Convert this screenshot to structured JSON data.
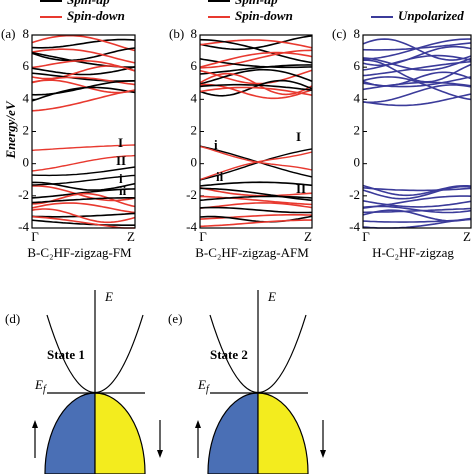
{
  "panels": [
    {
      "label": "(a)",
      "legend": [
        {
          "name": "Spin-up",
          "color": "#000000"
        },
        {
          "name": "Spin-down",
          "color": "#e8392f"
        }
      ],
      "ylabel": "Energy/eV",
      "ylim": [
        -4,
        8
      ],
      "yticks": [
        -4,
        -2,
        0,
        2,
        4,
        6,
        8
      ],
      "xticks": [
        "Γ",
        "Z"
      ],
      "caption": "B-C₂HF-zigzag-FM",
      "annotations": [
        {
          "text": "I",
          "color": "#e8392f"
        },
        {
          "text": "II",
          "color": "#e8392f"
        },
        {
          "text": "i",
          "color": "#000000"
        },
        {
          "text": "ii",
          "color": "#000000"
        }
      ]
    },
    {
      "label": "(b)",
      "legend": [
        {
          "name": "Spin-up",
          "color": "#000000"
        },
        {
          "name": "Spin-down",
          "color": "#e8392f"
        }
      ],
      "ylim": [
        -4,
        8
      ],
      "yticks": [
        -4,
        -2,
        0,
        2,
        4,
        6,
        8
      ],
      "xticks": [
        "Γ",
        "Z"
      ],
      "caption": "B-C₂HF-zigzag-AFM",
      "annotations": [
        {
          "text": "i",
          "color": "#000000"
        },
        {
          "text": "ii",
          "color": "#000000"
        },
        {
          "text": "I",
          "color": "#e8392f"
        },
        {
          "text": "II",
          "color": "#e8392f"
        }
      ]
    },
    {
      "label": "(c)",
      "legend": [
        {
          "name": "Unpolarized",
          "color": "#3b3b9a"
        }
      ],
      "ylim": [
        -4,
        8
      ],
      "yticks": [
        -4,
        -2,
        0,
        2,
        4,
        6,
        8
      ],
      "xticks": [
        "Γ",
        "Z"
      ],
      "caption": "H-C₂HF-zigzag",
      "annotations": []
    }
  ],
  "schematics": [
    {
      "label": "(d)",
      "energy": "E",
      "fermi": "E",
      "fermi_sub": "f",
      "state": "State 1"
    },
    {
      "label": "(e)",
      "energy": "E",
      "fermi": "E",
      "fermi_sub": "f",
      "state": "State 2"
    }
  ]
}
